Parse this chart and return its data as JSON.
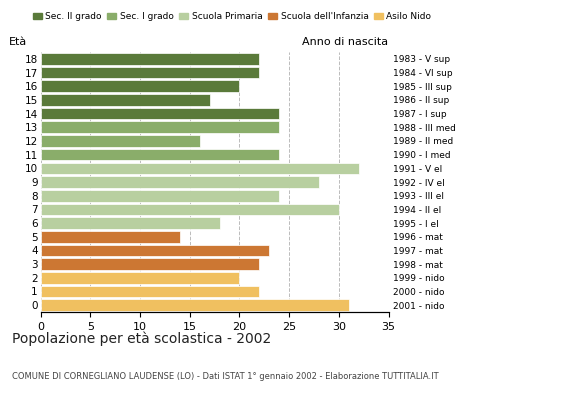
{
  "ages": [
    18,
    17,
    16,
    15,
    14,
    13,
    12,
    11,
    10,
    9,
    8,
    7,
    6,
    5,
    4,
    3,
    2,
    1,
    0
  ],
  "values": [
    22,
    22,
    20,
    17,
    24,
    24,
    16,
    24,
    32,
    28,
    24,
    30,
    18,
    14,
    23,
    22,
    20,
    22,
    31
  ],
  "age_colors": {
    "18": "#5a7a3a",
    "17": "#5a7a3a",
    "16": "#5a7a3a",
    "15": "#5a7a3a",
    "14": "#5a7a3a",
    "13": "#8aad6a",
    "12": "#8aad6a",
    "11": "#8aad6a",
    "10": "#b8cfa0",
    "9": "#b8cfa0",
    "8": "#b8cfa0",
    "7": "#b8cfa0",
    "6": "#b8cfa0",
    "5": "#cc7733",
    "4": "#cc7733",
    "3": "#cc7733",
    "2": "#f0c060",
    "1": "#f0c060",
    "0": "#f0c060"
  },
  "right_labels": [
    "1983 - V sup",
    "1984 - VI sup",
    "1985 - III sup",
    "1986 - II sup",
    "1987 - I sup",
    "1988 - III med",
    "1989 - II med",
    "1990 - I med",
    "1991 - V el",
    "1992 - IV el",
    "1993 - III el",
    "1994 - II el",
    "1995 - I el",
    "1996 - mat",
    "1997 - mat",
    "1998 - mat",
    "1999 - nido",
    "2000 - nido",
    "2001 - nido"
  ],
  "xlim": [
    0,
    35
  ],
  "xticks": [
    0,
    5,
    10,
    15,
    20,
    25,
    30,
    35
  ],
  "title1": "Popolazione per età scolastica - 2002",
  "title2": "COMUNE DI CORNEGLIANO LAUDENSE (LO) - Dati ISTAT 1° gennaio 2002 - Elaborazione TUTTITALIA.IT",
  "legend_labels": [
    "Sec. II grado",
    "Sec. I grado",
    "Scuola Primaria",
    "Scuola dell'Infanzia",
    "Asilo Nido"
  ],
  "legend_colors": [
    "#5a7a3a",
    "#8aad6a",
    "#b8cfa0",
    "#cc7733",
    "#f0c060"
  ],
  "grid_color": "#bbbbbb",
  "bar_height": 0.85,
  "background_color": "#ffffff",
  "eta_label": "Età",
  "anno_label": "Anno di nascita"
}
